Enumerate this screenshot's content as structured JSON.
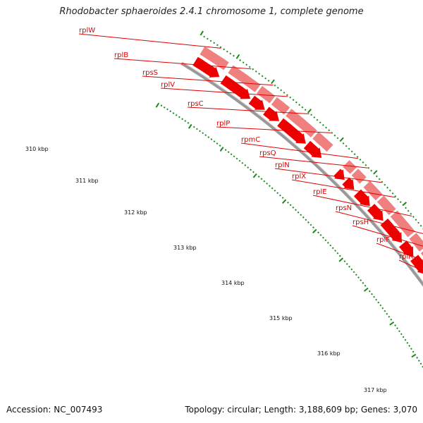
{
  "title": "Rhodobacter sphaeroides 2.4.1 chromosome 1, complete genome",
  "footer": {
    "accession": "Accession: NC_007493",
    "topology": "Topology: circular; Length: 3,188,609 bp; Genes: 3,070"
  },
  "colors": {
    "cds_arrow": "#ee0000",
    "gene_band": "#f08080",
    "backbone": "#999999",
    "tick": "#1a8a1a",
    "label": "#e00000"
  },
  "gene_labels": [
    "rplW",
    "rplB",
    "rpsS",
    "rplV",
    "rpsC",
    "rplP",
    "rpmC",
    "rpsQ",
    "rplN",
    "rplX",
    "rplE",
    "rpsN",
    "rpsH",
    "rplF",
    "rplR"
  ],
  "kbp_labels": [
    "310 kbp",
    "311 kbp",
    "312 kbp",
    "313 kbp",
    "314 kbp",
    "315 kbp",
    "316 kbp",
    "317 kbp"
  ]
}
